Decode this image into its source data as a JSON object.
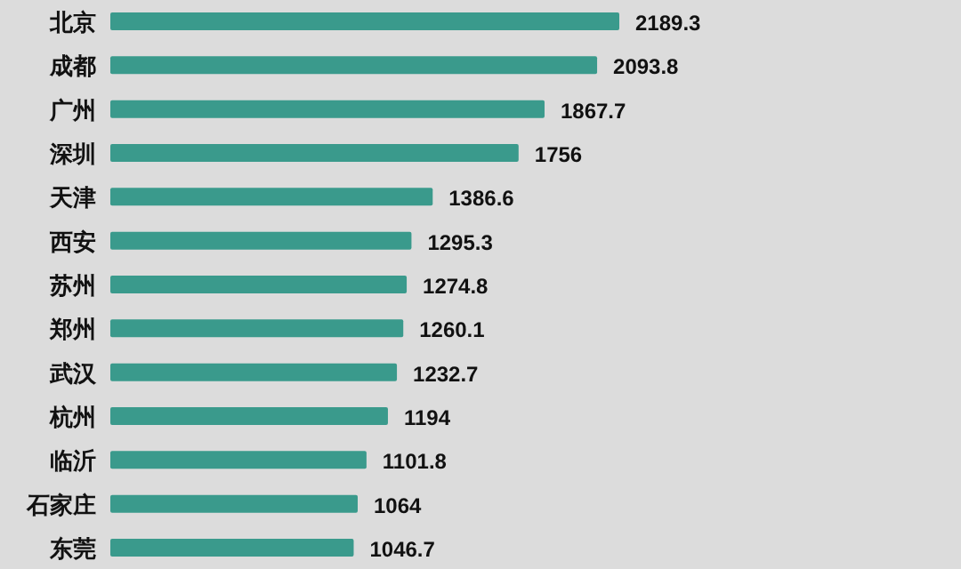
{
  "chart_data": {
    "type": "bar",
    "orientation": "horizontal",
    "categories": [
      "北京",
      "成都",
      "广州",
      "深圳",
      "天津",
      "西安",
      "苏州",
      "郑州",
      "武汉",
      "杭州",
      "临沂",
      "石家庄",
      "东莞"
    ],
    "values": [
      2189.3,
      2093.8,
      1867.7,
      1756,
      1386.6,
      1295.3,
      1274.8,
      1260.1,
      1232.7,
      1194,
      1101.8,
      1064,
      1046.7
    ],
    "color": "#3a9a8c",
    "data_labels": true
  }
}
